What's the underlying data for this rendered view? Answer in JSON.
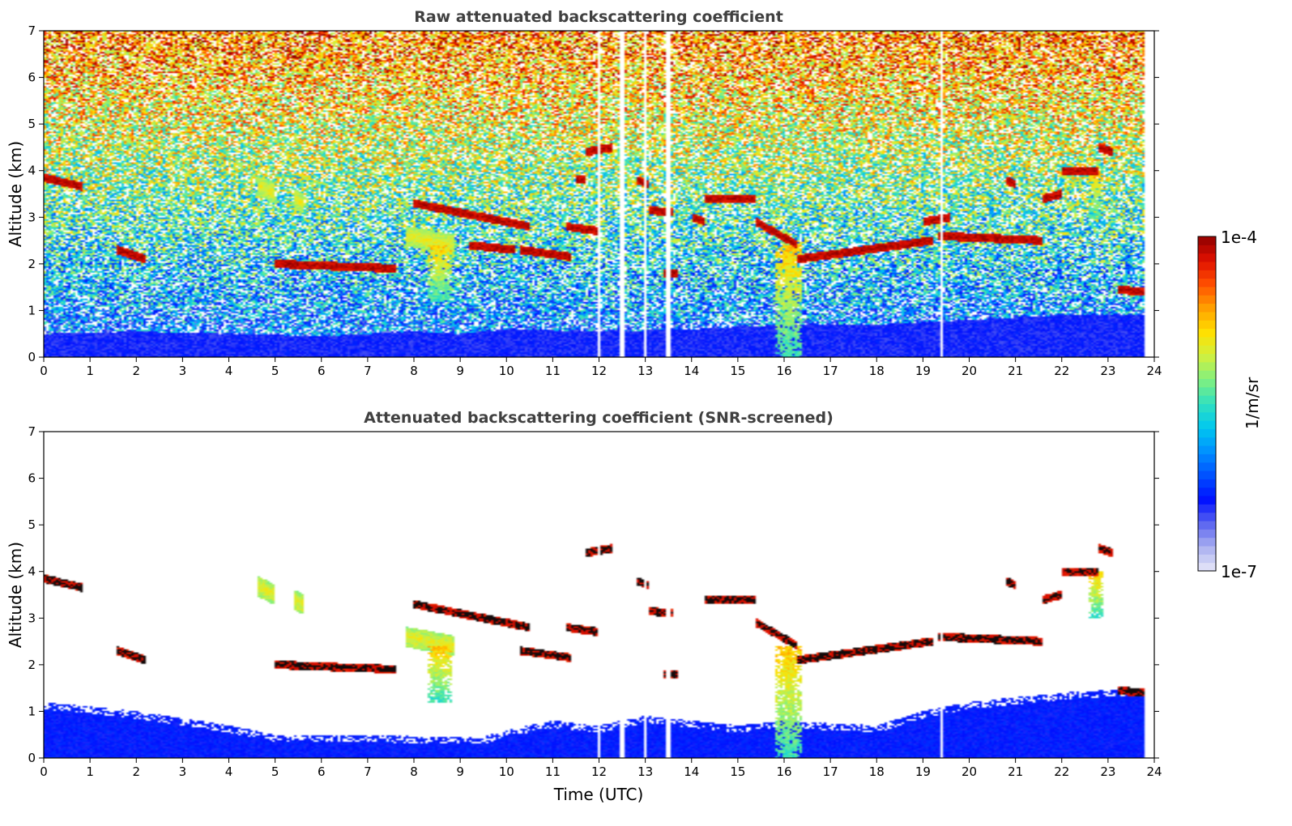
{
  "chart_data": [
    {
      "type": "heatmap",
      "title": "Raw attenuated backscattering coefficient",
      "xlabel": "",
      "ylabel": "Altitude (km)",
      "xlim": [
        0,
        24
      ],
      "ylim": [
        0,
        7
      ],
      "x_ticks": [
        0,
        1,
        2,
        3,
        4,
        5,
        6,
        7,
        8,
        9,
        10,
        11,
        12,
        13,
        14,
        15,
        16,
        17,
        18,
        19,
        20,
        21,
        22,
        23,
        24
      ],
      "y_ticks": [
        0,
        1,
        2,
        3,
        4,
        5,
        6,
        7
      ],
      "grid": false,
      "screened": false,
      "data_end_time": 23.8,
      "boundary_layer_top_km": [
        [
          0,
          0.5
        ],
        [
          2,
          0.55
        ],
        [
          4,
          0.5
        ],
        [
          6,
          0.45
        ],
        [
          8,
          0.55
        ],
        [
          9,
          0.5
        ],
        [
          10,
          0.6
        ],
        [
          12,
          0.55
        ],
        [
          14,
          0.6
        ],
        [
          16,
          0.7
        ],
        [
          18,
          0.7
        ],
        [
          20,
          0.8
        ],
        [
          22,
          0.9
        ],
        [
          23.8,
          0.9
        ]
      ],
      "layers": [
        {
          "t0": 0.0,
          "t1": 0.85,
          "alt0": 3.85,
          "alt1": 3.65,
          "kind": "cloud"
        },
        {
          "t0": 1.6,
          "t1": 2.2,
          "alt0": 2.3,
          "alt1": 2.1,
          "kind": "cloud"
        },
        {
          "t0": 5.0,
          "t1": 7.6,
          "alt0": 2.0,
          "alt1": 1.9,
          "kind": "cloud"
        },
        {
          "t0": 8.0,
          "t1": 10.5,
          "alt0": 3.3,
          "alt1": 2.8,
          "kind": "cloud"
        },
        {
          "t0": 9.2,
          "t1": 10.2,
          "alt0": 2.4,
          "alt1": 2.3,
          "kind": "cloud"
        },
        {
          "t0": 10.3,
          "t1": 11.4,
          "alt0": 2.3,
          "alt1": 2.15,
          "kind": "cloud"
        },
        {
          "t0": 11.3,
          "t1": 12.0,
          "alt0": 2.8,
          "alt1": 2.7,
          "kind": "cloud"
        },
        {
          "t0": 11.7,
          "t1": 12.3,
          "alt0": 4.4,
          "alt1": 4.5,
          "kind": "cloud"
        },
        {
          "t0": 11.5,
          "t1": 11.7,
          "alt0": 3.8,
          "alt1": 3.8,
          "kind": "cloud"
        },
        {
          "t0": 12.8,
          "t1": 13.1,
          "alt0": 3.8,
          "alt1": 3.7,
          "kind": "cloud"
        },
        {
          "t0": 13.1,
          "t1": 13.6,
          "alt0": 3.15,
          "alt1": 3.1,
          "kind": "cloud"
        },
        {
          "t0": 13.4,
          "t1": 13.7,
          "alt0": 1.8,
          "alt1": 1.8,
          "kind": "cloud"
        },
        {
          "t0": 14.0,
          "t1": 14.3,
          "alt0": 3.0,
          "alt1": 2.9,
          "kind": "cloud"
        },
        {
          "t0": 14.3,
          "t1": 15.4,
          "alt0": 3.4,
          "alt1": 3.4,
          "kind": "cloud"
        },
        {
          "t0": 15.4,
          "t1": 16.3,
          "alt0": 2.9,
          "alt1": 2.4,
          "kind": "cloud"
        },
        {
          "t0": 16.3,
          "t1": 19.2,
          "alt0": 2.1,
          "alt1": 2.5,
          "kind": "cloud"
        },
        {
          "t0": 19.3,
          "t1": 21.6,
          "alt0": 2.6,
          "alt1": 2.5,
          "kind": "cloud"
        },
        {
          "t0": 19.0,
          "t1": 19.6,
          "alt0": 2.9,
          "alt1": 3.0,
          "kind": "cloud"
        },
        {
          "t0": 20.8,
          "t1": 21.0,
          "alt0": 3.8,
          "alt1": 3.7,
          "kind": "cloud"
        },
        {
          "t0": 21.6,
          "t1": 22.0,
          "alt0": 3.4,
          "alt1": 3.5,
          "kind": "cloud"
        },
        {
          "t0": 22.0,
          "t1": 22.8,
          "alt0": 4.0,
          "alt1": 4.0,
          "kind": "cloud"
        },
        {
          "t0": 22.8,
          "t1": 23.1,
          "alt0": 4.5,
          "alt1": 4.4,
          "kind": "cloud"
        },
        {
          "t0": 23.2,
          "t1": 23.8,
          "alt0": 1.45,
          "alt1": 1.4,
          "kind": "cloud"
        },
        {
          "t0": 4.6,
          "t1": 5.0,
          "alt0": 3.7,
          "alt1": 3.5,
          "kind": "aerosol"
        },
        {
          "t0": 5.4,
          "t1": 5.6,
          "alt0": 3.4,
          "alt1": 3.3,
          "kind": "aerosol"
        },
        {
          "t0": 7.8,
          "t1": 8.9,
          "alt0": 2.6,
          "alt1": 2.4,
          "kind": "aerosol"
        }
      ],
      "fall_streaks": [
        {
          "t0": 8.3,
          "t1": 8.8,
          "alt_top": 2.4,
          "alt_bottom": 1.2
        },
        {
          "t0": 15.8,
          "t1": 16.4,
          "alt_top": 2.4,
          "alt_bottom": 0.0
        },
        {
          "t0": 22.6,
          "t1": 22.9,
          "alt_top": 4.0,
          "alt_bottom": 3.0
        }
      ],
      "gaps_time": [
        12.0,
        12.5,
        13.0,
        13.5,
        19.4
      ]
    },
    {
      "type": "heatmap",
      "title": "Attenuated backscattering coefficient (SNR-screened)",
      "xlabel": "Time (UTC)",
      "ylabel": "Altitude (km)",
      "xlim": [
        0,
        24
      ],
      "ylim": [
        0,
        7
      ],
      "x_ticks": [
        0,
        1,
        2,
        3,
        4,
        5,
        6,
        7,
        8,
        9,
        10,
        11,
        12,
        13,
        14,
        15,
        16,
        17,
        18,
        19,
        20,
        21,
        22,
        23,
        24
      ],
      "y_ticks": [
        0,
        1,
        2,
        3,
        4,
        5,
        6,
        7
      ],
      "grid": false,
      "screened": true,
      "data_end_time": 23.8,
      "boundary_layer_top_km": [
        [
          0,
          1.2
        ],
        [
          2,
          1.0
        ],
        [
          4,
          0.7
        ],
        [
          5,
          0.5
        ],
        [
          7,
          0.5
        ],
        [
          8.5,
          0.45
        ],
        [
          9.5,
          0.45
        ],
        [
          10,
          0.6
        ],
        [
          11,
          0.8
        ],
        [
          12,
          0.7
        ],
        [
          13,
          0.9
        ],
        [
          14,
          0.8
        ],
        [
          15,
          0.7
        ],
        [
          16,
          0.8
        ],
        [
          18,
          0.7
        ],
        [
          19,
          1.0
        ],
        [
          20,
          1.2
        ],
        [
          22,
          1.4
        ],
        [
          23.8,
          1.5
        ]
      ],
      "layers": [
        {
          "t0": 0.0,
          "t1": 0.85,
          "alt0": 3.85,
          "alt1": 3.65,
          "kind": "cloud"
        },
        {
          "t0": 1.6,
          "t1": 2.2,
          "alt0": 2.3,
          "alt1": 2.1,
          "kind": "cloud"
        },
        {
          "t0": 5.0,
          "t1": 7.6,
          "alt0": 2.0,
          "alt1": 1.9,
          "kind": "cloud"
        },
        {
          "t0": 8.0,
          "t1": 10.5,
          "alt0": 3.3,
          "alt1": 2.8,
          "kind": "cloud"
        },
        {
          "t0": 10.3,
          "t1": 11.4,
          "alt0": 2.3,
          "alt1": 2.15,
          "kind": "cloud"
        },
        {
          "t0": 11.3,
          "t1": 12.0,
          "alt0": 2.8,
          "alt1": 2.7,
          "kind": "cloud"
        },
        {
          "t0": 11.7,
          "t1": 12.3,
          "alt0": 4.4,
          "alt1": 4.5,
          "kind": "cloud"
        },
        {
          "t0": 12.8,
          "t1": 13.1,
          "alt0": 3.8,
          "alt1": 3.7,
          "kind": "cloud"
        },
        {
          "t0": 13.1,
          "t1": 13.6,
          "alt0": 3.15,
          "alt1": 3.1,
          "kind": "cloud"
        },
        {
          "t0": 13.4,
          "t1": 13.7,
          "alt0": 1.8,
          "alt1": 1.8,
          "kind": "cloud"
        },
        {
          "t0": 14.3,
          "t1": 15.4,
          "alt0": 3.4,
          "alt1": 3.4,
          "kind": "cloud"
        },
        {
          "t0": 15.4,
          "t1": 16.3,
          "alt0": 2.9,
          "alt1": 2.4,
          "kind": "cloud"
        },
        {
          "t0": 16.3,
          "t1": 19.2,
          "alt0": 2.1,
          "alt1": 2.5,
          "kind": "cloud"
        },
        {
          "t0": 19.3,
          "t1": 21.6,
          "alt0": 2.6,
          "alt1": 2.5,
          "kind": "cloud"
        },
        {
          "t0": 20.8,
          "t1": 21.0,
          "alt0": 3.8,
          "alt1": 3.7,
          "kind": "cloud"
        },
        {
          "t0": 21.6,
          "t1": 22.0,
          "alt0": 3.4,
          "alt1": 3.5,
          "kind": "cloud"
        },
        {
          "t0": 22.0,
          "t1": 22.8,
          "alt0": 4.0,
          "alt1": 4.0,
          "kind": "cloud"
        },
        {
          "t0": 22.8,
          "t1": 23.1,
          "alt0": 4.5,
          "alt1": 4.4,
          "kind": "cloud"
        },
        {
          "t0": 23.2,
          "t1": 23.8,
          "alt0": 1.45,
          "alt1": 1.4,
          "kind": "cloud"
        },
        {
          "t0": 4.6,
          "t1": 5.0,
          "alt0": 3.7,
          "alt1": 3.5,
          "kind": "aerosol"
        },
        {
          "t0": 5.4,
          "t1": 5.6,
          "alt0": 3.4,
          "alt1": 3.3,
          "kind": "aerosol"
        },
        {
          "t0": 7.8,
          "t1": 8.9,
          "alt0": 2.6,
          "alt1": 2.4,
          "kind": "aerosol"
        }
      ],
      "fall_streaks": [
        {
          "t0": 8.3,
          "t1": 8.8,
          "alt_top": 2.4,
          "alt_bottom": 1.2
        },
        {
          "t0": 15.8,
          "t1": 16.4,
          "alt_top": 2.4,
          "alt_bottom": 0.0
        },
        {
          "t0": 22.6,
          "t1": 22.9,
          "alt_top": 4.0,
          "alt_bottom": 3.0
        }
      ],
      "gaps_time": [
        12.0,
        12.5,
        13.0,
        13.5,
        19.4
      ]
    }
  ],
  "colorbar": {
    "label": "1/m/sr",
    "min_label": "1e-7",
    "max_label": "1e-4",
    "min_value": 1e-07,
    "max_value": 0.0001,
    "scale": "log",
    "colors": [
      "#e8e8f8",
      "#aab0f0",
      "#5a64f0",
      "#0010ff",
      "#0050ff",
      "#0090ff",
      "#00c8f0",
      "#30e0c0",
      "#80f080",
      "#d0f040",
      "#ffe000",
      "#ffa000",
      "#ff5000",
      "#e01000",
      "#900000"
    ]
  }
}
